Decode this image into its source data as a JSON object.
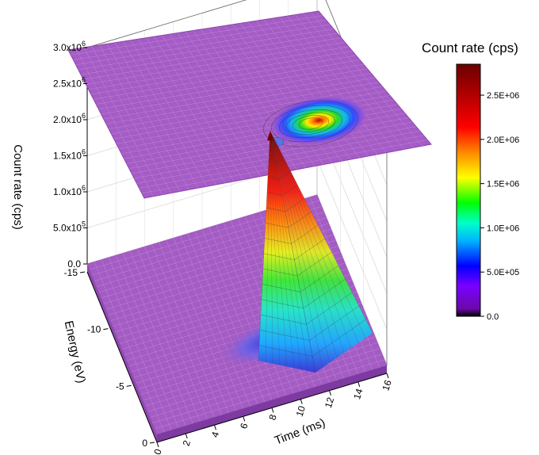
{
  "chart_data": {
    "type": "surface3d",
    "title": "",
    "x_axis": {
      "label": "Time (ms)",
      "range": [
        0,
        16
      ],
      "ticks": [
        "0",
        "2",
        "4",
        "6",
        "8",
        "10",
        "12",
        "14",
        "16"
      ]
    },
    "y_axis": {
      "label": "Energy (eV)",
      "range": [
        -15,
        0
      ],
      "ticks": [
        "0",
        "-5",
        "-10",
        "-15"
      ]
    },
    "z_axis": {
      "label": "Count rate (cps)",
      "range": [
        0,
        3000000
      ],
      "ticks": [
        {
          "mant": "0.0",
          "exp": ""
        },
        {
          "mant": "5.0x10",
          "exp": "5"
        },
        {
          "mant": "1.0x10",
          "exp": "6"
        },
        {
          "mant": "1.5x10",
          "exp": "6"
        },
        {
          "mant": "2.0x10",
          "exp": "6"
        },
        {
          "mant": "2.5x10",
          "exp": "6"
        },
        {
          "mant": "3.0x10",
          "exp": "6"
        }
      ]
    },
    "colorbar": {
      "title": "Count rate (cps)",
      "range": [
        0,
        2850000
      ],
      "ticks": [
        "0.0",
        "5.0E+05",
        "1.0E+06",
        "1.5E+06",
        "2.0E+06",
        "2.5E+06"
      ],
      "colors": [
        "#000000",
        "#6a0aa8",
        "#7a00ff",
        "#0000ff",
        "#00b4ff",
        "#00ffc8",
        "#00ff00",
        "#ffff00",
        "#ff8800",
        "#ff0000",
        "#b00000",
        "#6a0000"
      ]
    },
    "peak": {
      "time_ms": 9.5,
      "energy_eV": -5,
      "count_rate_cps": 2850000
    },
    "grid": true,
    "projection_plane": "top"
  }
}
